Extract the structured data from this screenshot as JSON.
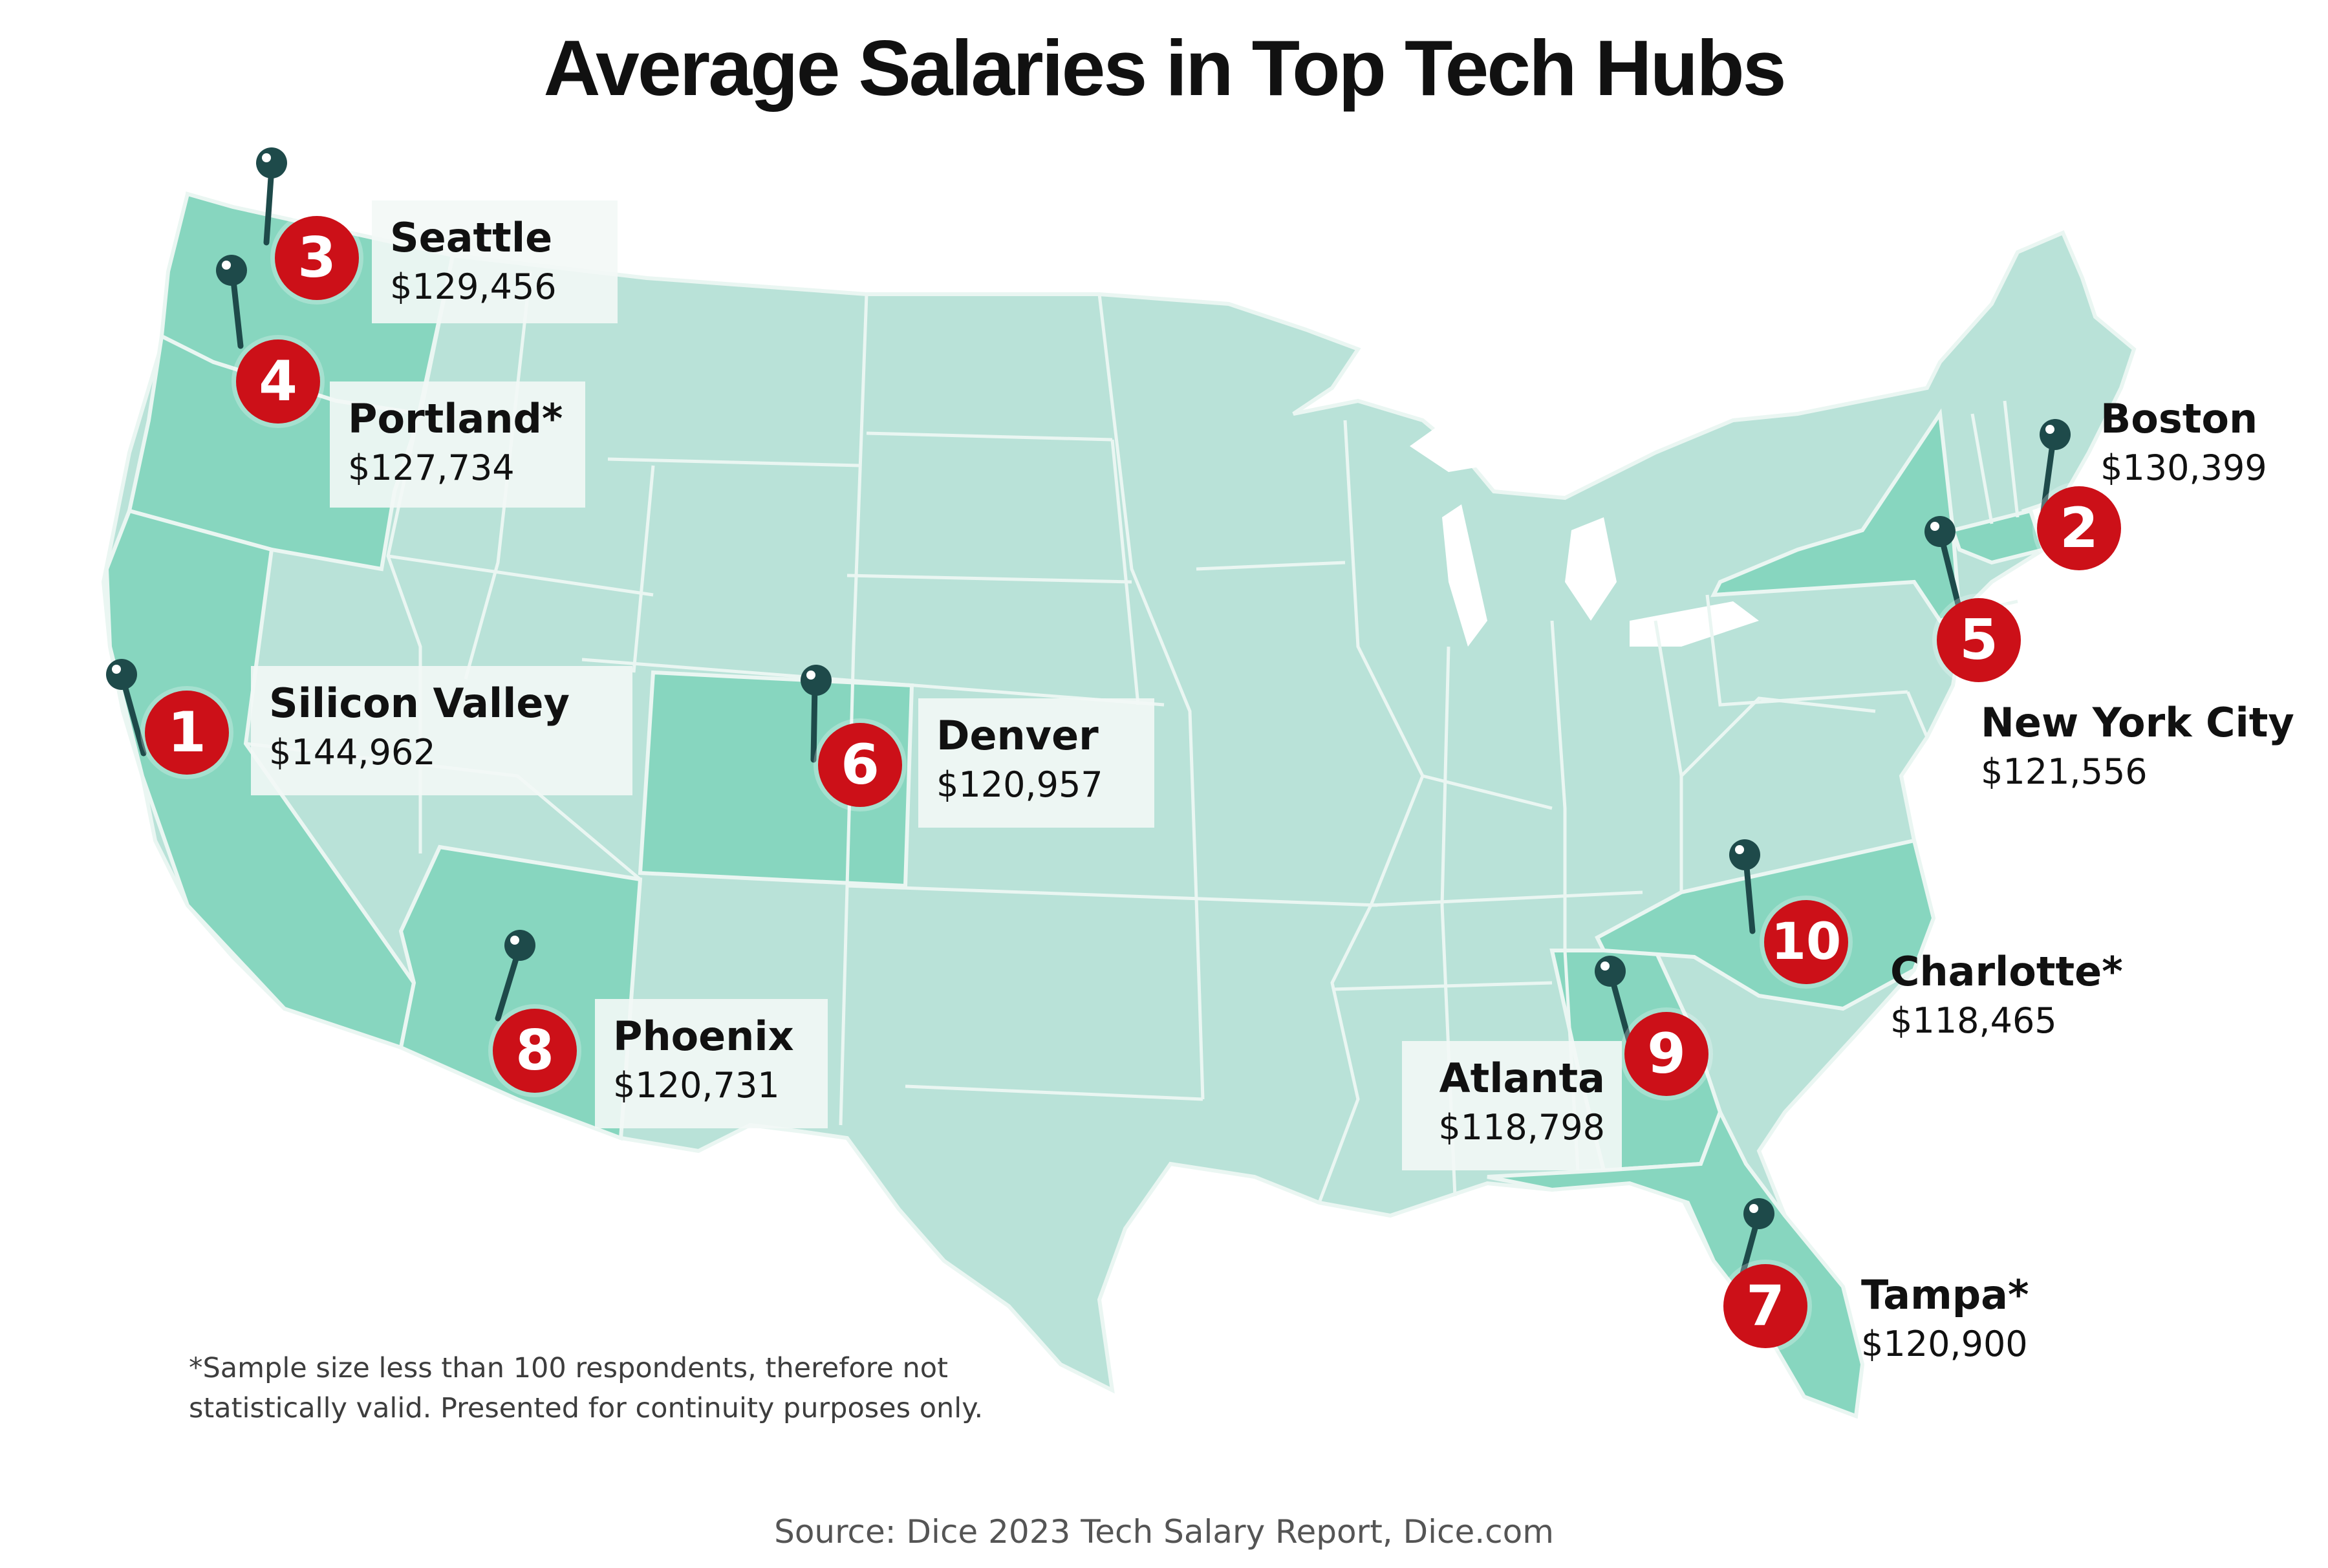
{
  "title": "Average Salaries in Top Tech Hubs",
  "colors": {
    "land": "#b9e2d8",
    "highlight": "#87d6bf",
    "border": "#eaf6f2",
    "badge": "#cc1018",
    "pin": "#1e4a4a",
    "card": "#f3f8f6"
  },
  "icons": {
    "pin": "map-pin-icon"
  },
  "hubs": [
    {
      "rank": "1",
      "city": "Silicon Valley",
      "salary": "$144,962"
    },
    {
      "rank": "2",
      "city": "Boston",
      "salary": "$130,399"
    },
    {
      "rank": "3",
      "city": "Seattle",
      "salary": "$129,456"
    },
    {
      "rank": "4",
      "city": "Portland*",
      "salary": "$127,734"
    },
    {
      "rank": "5",
      "city": "New York City",
      "salary": "$121,556"
    },
    {
      "rank": "6",
      "city": "Denver",
      "salary": "$120,957"
    },
    {
      "rank": "7",
      "city": "Tampa*",
      "salary": "$120,900"
    },
    {
      "rank": "8",
      "city": "Phoenix",
      "salary": "$120,731"
    },
    {
      "rank": "9",
      "city": "Atlanta",
      "salary": "$118,798"
    },
    {
      "rank": "10",
      "city": "Charlotte*",
      "salary": "$118,465"
    }
  ],
  "footnote": "*Sample size less than 100 respondents, therefore not statistically valid. Presented for continuity purposes only.",
  "source": "Source: Dice 2023 Tech Salary Report, Dice.com"
}
